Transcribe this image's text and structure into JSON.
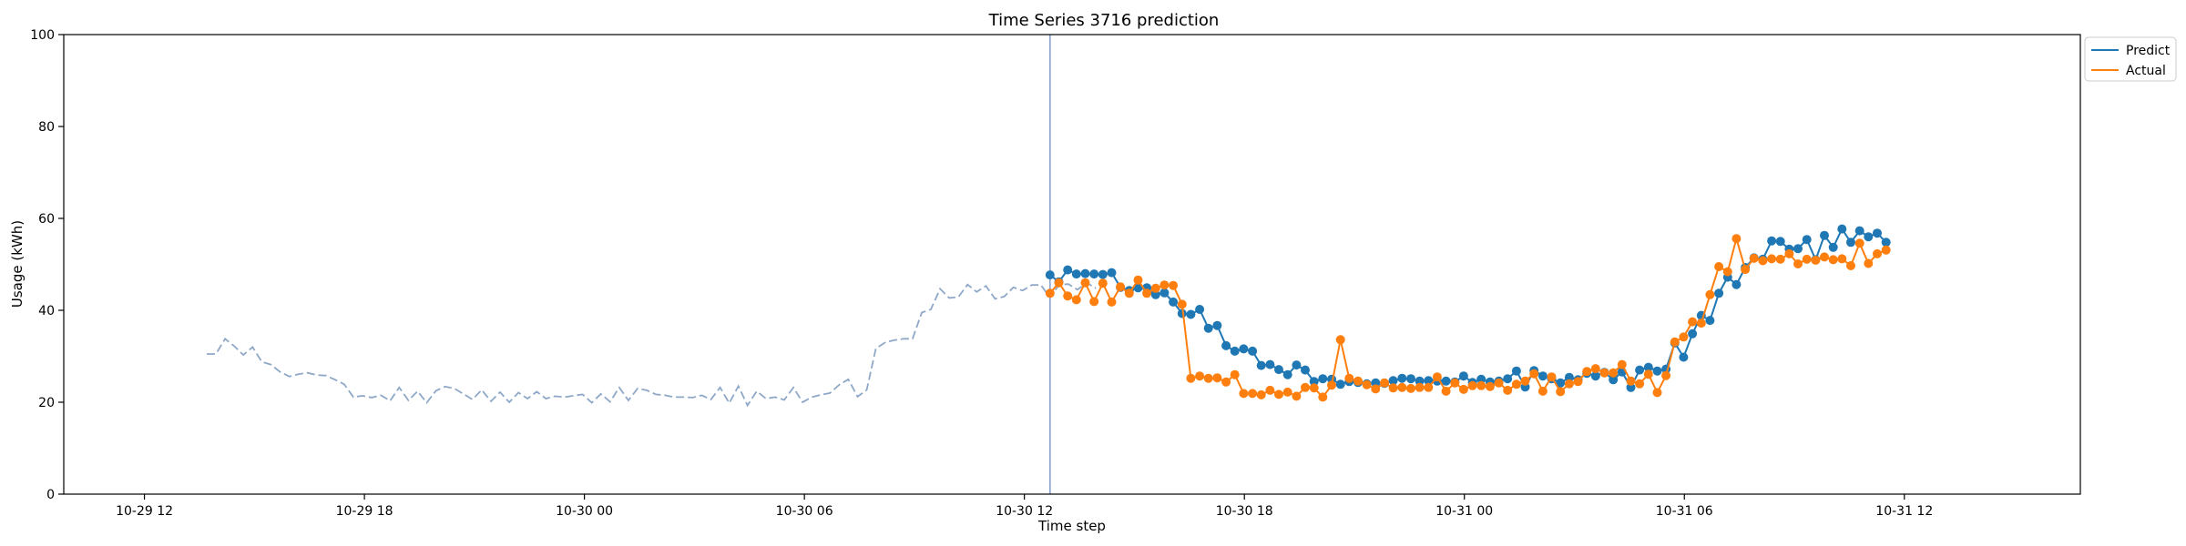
{
  "chart_data": {
    "type": "line",
    "title": "Time Series 3716 prediction",
    "xlabel": "Time step",
    "ylabel": "Usage (kWh)",
    "ylim": [
      0,
      100
    ],
    "yticks": [
      0,
      20,
      40,
      60,
      80,
      100
    ],
    "xlim": [
      -2.2,
      52.8
    ],
    "xticks": [
      {
        "label": "10-29 12",
        "x": 0
      },
      {
        "label": "10-29 18",
        "x": 6
      },
      {
        "label": "10-30 00",
        "x": 12
      },
      {
        "label": "10-30 06",
        "x": 18
      },
      {
        "label": "10-30 12",
        "x": 24
      },
      {
        "label": "10-30 18",
        "x": 30
      },
      {
        "label": "10-31 00",
        "x": 36
      },
      {
        "label": "10-31 06",
        "x": 42
      },
      {
        "label": "10-31 12",
        "x": 48
      }
    ],
    "forecast_start": 24.7,
    "legend_position": "outside top-right",
    "history": {
      "name": "History",
      "color": "#8fa8c8",
      "x0": 1.7,
      "dx": 0.25,
      "values": [
        30.5,
        30.5,
        33.8,
        32.2,
        30.3,
        32.0,
        28.8,
        28.2,
        26.6,
        25.6,
        26.1,
        26.4,
        25.9,
        25.8,
        24.9,
        23.9,
        21.1,
        21.4,
        21.0,
        21.5,
        20.3,
        23.2,
        20.4,
        22.4,
        19.9,
        22.5,
        23.4,
        23.0,
        21.8,
        20.6,
        22.7,
        20.2,
        22.2,
        20.0,
        22.1,
        20.8,
        22.3,
        20.8,
        21.3,
        21.1,
        21.4,
        21.7,
        19.9,
        21.8,
        20.1,
        23.2,
        20.4,
        23.0,
        22.6,
        21.7,
        21.5,
        21.1,
        21.1,
        21.0,
        21.5,
        20.6,
        23.2,
        19.8,
        23.5,
        19.3,
        22.4,
        20.8,
        21.1,
        20.5,
        23.2,
        20.0,
        21.1,
        21.6,
        22.0,
        23.8,
        25.0,
        21.2,
        22.7,
        31.7,
        33.0,
        33.5,
        33.8,
        33.8,
        39.5,
        40.2,
        44.7,
        42.7,
        42.9,
        45.6,
        44.0,
        45.3,
        42.5,
        43.0,
        45.0,
        44.3,
        45.5,
        45.5,
        42.8,
        45.6,
        45.7,
        44.5,
        46.0,
        44.8
      ]
    },
    "series": [
      {
        "name": "Predict",
        "color": "#1f77b4",
        "x0": 24.7,
        "dx": 0.24,
        "values": [
          47.7,
          46.2,
          48.8,
          47.9,
          48.0,
          47.9,
          47.8,
          48.2,
          45.0,
          44.3,
          44.9,
          44.9,
          43.4,
          43.8,
          41.8,
          39.3,
          39.1,
          40.2,
          36.1,
          36.7,
          32.3,
          31.1,
          31.6,
          31.1,
          28.0,
          28.2,
          27.1,
          26.0,
          28.1,
          27.0,
          24.5,
          25.1,
          25.0,
          23.9,
          24.5,
          24.3,
          24.0,
          24.2,
          24.1,
          24.7,
          25.2,
          25.1,
          24.6,
          24.7,
          24.6,
          24.6,
          24.4,
          25.7,
          24.3,
          25.0,
          24.4,
          24.6,
          25.1,
          26.8,
          23.3,
          26.9,
          25.7,
          25.1,
          24.2,
          25.4,
          24.9,
          26.3,
          25.7,
          26.5,
          24.9,
          26.6,
          23.2,
          27.0,
          27.6,
          26.8,
          27.2,
          32.9,
          29.8,
          34.9,
          38.9,
          37.8,
          43.7,
          47.2,
          45.6,
          49.3,
          51.4,
          51.1,
          55.1,
          55.0,
          53.3,
          53.4,
          55.4,
          51.0,
          56.3,
          53.7,
          57.7,
          54.8,
          57.3,
          56.0,
          56.8,
          54.8
        ]
      },
      {
        "name": "Actual",
        "color": "#ff7f0e",
        "x0": 24.7,
        "dx": 0.24,
        "values": [
          43.7,
          46.0,
          43.1,
          42.3,
          46.0,
          41.9,
          45.9,
          41.8,
          45.1,
          43.7,
          46.6,
          43.7,
          44.8,
          45.5,
          45.4,
          41.3,
          25.2,
          25.7,
          25.2,
          25.3,
          24.4,
          26.0,
          21.9,
          21.9,
          21.6,
          22.6,
          21.7,
          22.2,
          21.3,
          23.2,
          23.1,
          21.1,
          23.7,
          33.6,
          25.2,
          24.6,
          23.8,
          22.9,
          24.2,
          23.1,
          23.2,
          23.0,
          23.2,
          23.2,
          25.5,
          22.4,
          24.2,
          22.8,
          23.6,
          23.6,
          23.4,
          24.2,
          22.6,
          23.9,
          24.6,
          26.2,
          22.4,
          25.5,
          22.3,
          24.0,
          24.5,
          26.7,
          27.3,
          26.4,
          26.4,
          28.2,
          24.6,
          24.0,
          26.1,
          22.1,
          25.8,
          33.1,
          34.2,
          37.5,
          37.2,
          43.4,
          49.5,
          48.4,
          55.6,
          48.9,
          51.3,
          50.8,
          51.2,
          51.1,
          52.3,
          50.1,
          51.1,
          50.9,
          51.6,
          51.0,
          51.2,
          49.7,
          54.6,
          50.2,
          52.3,
          53.1
        ]
      }
    ]
  }
}
